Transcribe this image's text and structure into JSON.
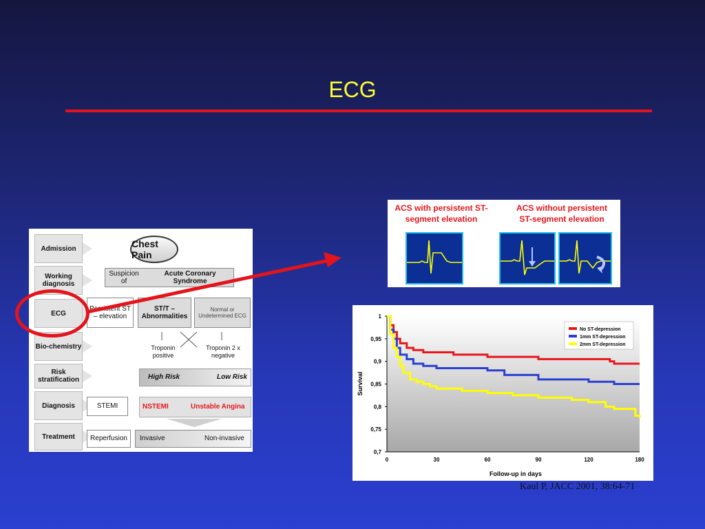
{
  "slide": {
    "title": "ECG",
    "citation": "Kaul P, JACC 2001, 38:64-71"
  },
  "flowchart": {
    "stages": [
      "Admission",
      "Working diagnosis",
      "ECG",
      "Bio-chemistry",
      "Risk stratification",
      "Diagnosis",
      "Treatment"
    ],
    "chest_pain": "Chest Pain",
    "suspicion_prefix": "Suspicion of",
    "suspicion_main": "Acute Coronary Syndrome",
    "persistent_st": "Persistent ST – elevation",
    "st_t": "ST/T – Abnormalities",
    "normal_ecg": "Normal or Undetermined ECG",
    "troponin_pos": "Troponin positive",
    "troponin_neg": "Troponin 2 x negative",
    "high_risk": "High Risk",
    "low_risk": "Low Risk",
    "stemi": "STEMI",
    "nstemi": "NSTEMI",
    "unstable_angina": "Unstable Angina",
    "reperfusion": "Reperfusion",
    "invasive": "Invasive",
    "non_invasive": "Non-invasive"
  },
  "waveforms": {
    "left_heading": "ACS with persistent ST-segment elevation",
    "right_heading": "ACS without persistent ST-segment elevation"
  },
  "chart_data": {
    "type": "line",
    "title": "",
    "xlabel": "Follow-up in days",
    "ylabel": "Survival",
    "xlim": [
      0,
      180
    ],
    "ylim": [
      0.7,
      1
    ],
    "x_ticks": [
      "0",
      "30",
      "60",
      "90",
      "120",
      "180"
    ],
    "y_ticks": [
      "0,7",
      "0,75",
      "0,8",
      "0,85",
      "0,9",
      "0,95",
      "1"
    ],
    "legend_position": "top-right",
    "series": [
      {
        "name": "No ST-depression",
        "color": "#e8161c",
        "x": [
          0,
          2,
          4,
          6,
          8,
          12,
          16,
          22,
          40,
          60,
          90,
          120,
          140,
          145,
          150,
          180
        ],
        "y": [
          1,
          0.98,
          0.965,
          0.95,
          0.94,
          0.93,
          0.925,
          0.92,
          0.915,
          0.91,
          0.905,
          0.905,
          0.905,
          0.9,
          0.895,
          0.895
        ]
      },
      {
        "name": "1mm ST-depression",
        "color": "#2a3fd0",
        "x": [
          0,
          2,
          4,
          6,
          8,
          12,
          16,
          22,
          30,
          40,
          60,
          70,
          90,
          120,
          140,
          150,
          180
        ],
        "y": [
          1,
          0.97,
          0.95,
          0.93,
          0.915,
          0.905,
          0.895,
          0.89,
          0.885,
          0.885,
          0.88,
          0.87,
          0.86,
          0.855,
          0.855,
          0.85,
          0.85
        ]
      },
      {
        "name": "2mm ST-depression",
        "color": "#ffff00",
        "x": [
          0,
          2,
          4,
          6,
          8,
          10,
          14,
          18,
          22,
          26,
          30,
          45,
          60,
          75,
          90,
          110,
          120,
          140,
          150,
          175,
          180
        ],
        "y": [
          1,
          0.96,
          0.93,
          0.91,
          0.89,
          0.875,
          0.86,
          0.855,
          0.85,
          0.845,
          0.84,
          0.835,
          0.83,
          0.825,
          0.82,
          0.815,
          0.81,
          0.8,
          0.795,
          0.78,
          0.775
        ]
      }
    ]
  }
}
